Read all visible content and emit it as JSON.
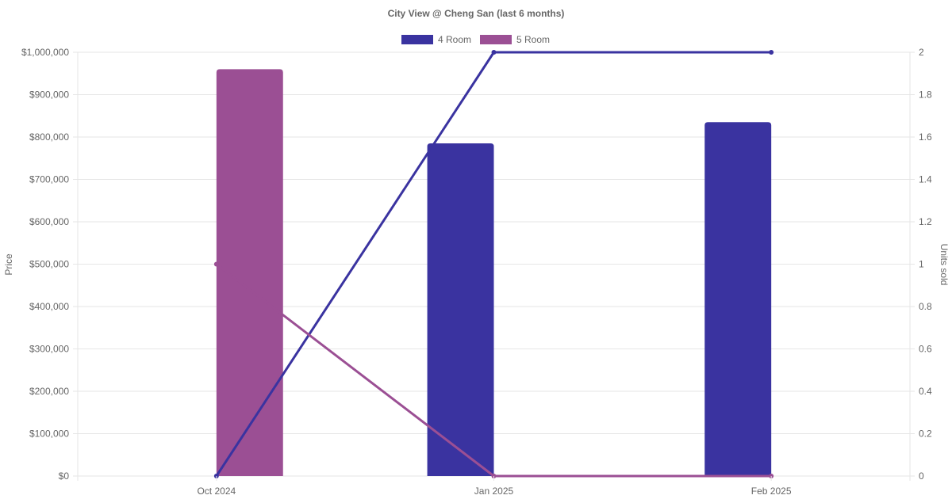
{
  "chart_data": {
    "type": "bar",
    "title": "City View @ Cheng San (last 6 months)",
    "categories": [
      "Oct 2024",
      "Jan 2025",
      "Feb 2025"
    ],
    "legend": {
      "placement": "top-center",
      "items": [
        {
          "label": "4 Room",
          "color": "#3a33a0"
        },
        {
          "label": "5 Room",
          "color": "#9b4f94"
        }
      ]
    },
    "y_left": {
      "label": "Price",
      "min": 0,
      "max": 1000000,
      "ticks": [
        0,
        100000,
        200000,
        300000,
        400000,
        500000,
        600000,
        700000,
        800000,
        900000,
        1000000
      ],
      "tick_labels": [
        "$0",
        "$100,000",
        "$200,000",
        "$300,000",
        "$400,000",
        "$500,000",
        "$600,000",
        "$700,000",
        "$800,000",
        "$900,000",
        "$1,000,000"
      ]
    },
    "y_right": {
      "label": "Units sold",
      "min": 0,
      "max": 2,
      "ticks": [
        0,
        0.2,
        0.4,
        0.6,
        0.8,
        1,
        1.2,
        1.4,
        1.6,
        1.8,
        2
      ],
      "tick_labels": [
        "0",
        "0.2",
        "0.4",
        "0.6",
        "0.8",
        "1",
        "1.2",
        "1.4",
        "1.6",
        "1.8",
        "2"
      ]
    },
    "bar_series": [
      {
        "name": "4 Room",
        "axis": "left",
        "color": "#3a33a0",
        "values": [
          null,
          785000,
          835000
        ]
      },
      {
        "name": "5 Room",
        "axis": "left",
        "color": "#9b4f94",
        "values": [
          960000,
          null,
          null
        ]
      }
    ],
    "line_series": [
      {
        "name": "4 Room",
        "axis": "right",
        "color": "#3a33a0",
        "values": [
          0,
          2,
          2
        ]
      },
      {
        "name": "5 Room",
        "axis": "right",
        "color": "#9b4f94",
        "values": [
          1,
          0,
          0
        ]
      }
    ],
    "grid": true
  }
}
